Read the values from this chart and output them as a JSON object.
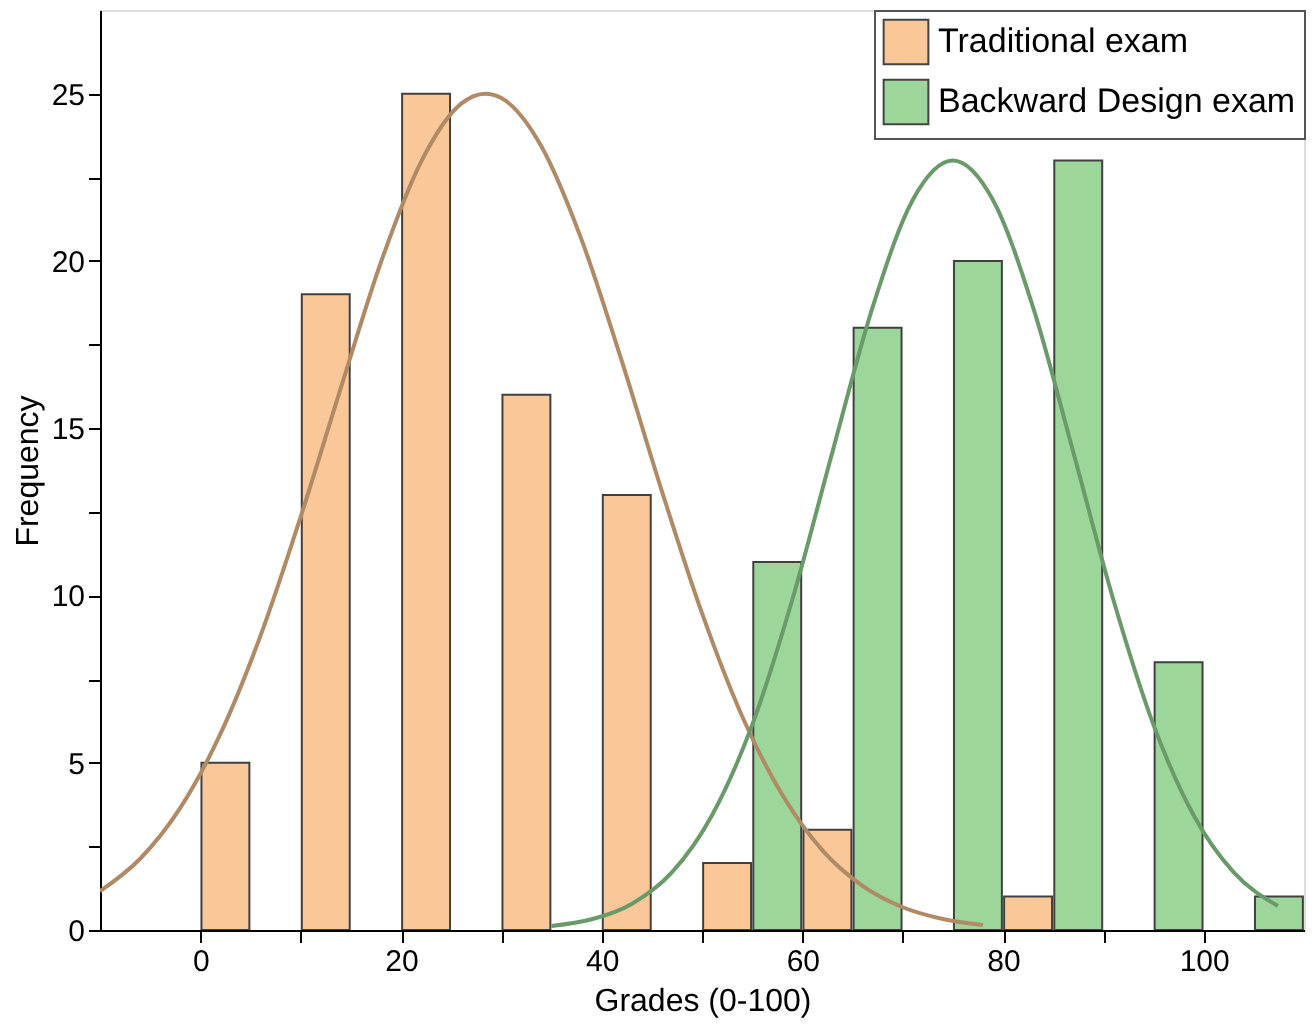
{
  "chart_data": {
    "type": "bar",
    "xlabel": "Grades (0-100)",
    "ylabel": "Frequency",
    "xlim": [
      -10,
      110
    ],
    "ylim": [
      0,
      27.5
    ],
    "xticks": [
      0,
      {
        "value": 10,
        "label": null
      },
      20,
      {
        "value": 30,
        "label": null
      },
      40,
      {
        "value": 50,
        "label": null
      },
      60,
      {
        "value": 70,
        "label": null
      },
      80,
      {
        "value": 90,
        "label": null
      },
      100
    ],
    "yticks": [
      0,
      {
        "value": 2.5,
        "label": null
      },
      5,
      {
        "value": 7.5,
        "label": null
      },
      10,
      {
        "value": 12.5,
        "label": null
      },
      15,
      {
        "value": 17.5,
        "label": null
      },
      20,
      {
        "value": 22.5,
        "label": null
      },
      25
    ],
    "grid": false,
    "legend": "top right",
    "line_style": "solid",
    "series": [
      {
        "name": "Traditional exam",
        "color": "#fac898",
        "x": [
          2.5,
          12.5,
          22.5,
          32.5,
          42.5,
          52.5,
          62.5,
          82.5
        ],
        "values": [
          5,
          19,
          25,
          16,
          13,
          2,
          3,
          1
        ]
      },
      {
        "name": "Backward Design exam",
        "color": "#9dd69b",
        "x": [
          57.5,
          67.5,
          77.5,
          87.5,
          97.5,
          107.5
        ],
        "values": [
          11,
          18,
          20,
          23,
          8,
          1
        ]
      },
      {
        "type": "line",
        "color": "#b08a64",
        "x": [
          -10,
          -6,
          -2,
          2,
          6,
          10,
          14,
          18,
          22,
          26,
          28.4,
          30,
          34,
          38,
          42,
          46,
          50,
          54,
          58,
          62,
          66,
          70,
          74,
          78
        ],
        "values": [
          1.16,
          2.13,
          3.65,
          5.86,
          8.8,
          12.35,
          16.2,
          19.96,
          22.96,
          24.7,
          25,
          24.87,
          23.42,
          20.63,
          17.01,
          13.12,
          9.47,
          6.39,
          4.04,
          2.38,
          1.32,
          0.68,
          0.33,
          0.15
        ]
      },
      {
        "type": "line",
        "color": "#6a9a6a",
        "x": [
          35,
          39,
          43,
          47,
          51,
          55,
          59,
          63,
          67,
          71,
          75,
          79,
          83,
          87,
          91,
          95,
          99,
          103,
          107.4
        ],
        "values": [
          0.12,
          0.32,
          0.78,
          1.72,
          3.43,
          6.13,
          9.87,
          14.29,
          18.61,
          21.82,
          23,
          21.82,
          18.61,
          14.29,
          9.87,
          6.13,
          3.43,
          1.72,
          0.72
        ]
      }
    ]
  }
}
